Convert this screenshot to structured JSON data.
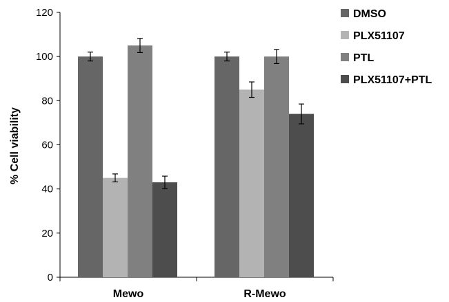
{
  "chart_data": {
    "type": "bar",
    "title": "",
    "xlabel": "",
    "ylabel": "% Cell viability",
    "ylim": [
      0,
      120
    ],
    "yticks": [
      0,
      20,
      40,
      60,
      80,
      100,
      120
    ],
    "categories": [
      "Mewo",
      "R-Mewo"
    ],
    "series": [
      {
        "name": "DMSO",
        "color": "#666666",
        "values": [
          100,
          100
        ],
        "errors": [
          2,
          2
        ]
      },
      {
        "name": "PLX51107",
        "color": "#b3b3b3",
        "values": [
          45,
          85
        ],
        "errors": [
          1.8,
          3.5
        ]
      },
      {
        "name": "PTL",
        "color": "#808080",
        "values": [
          105,
          100
        ],
        "errors": [
          3.2,
          3.2
        ]
      },
      {
        "name": "PLX51107+PTL",
        "color": "#4d4d4d",
        "values": [
          43,
          74
        ],
        "errors": [
          2.8,
          4.5
        ]
      }
    ],
    "legend_position": "top-right",
    "grid": false
  }
}
